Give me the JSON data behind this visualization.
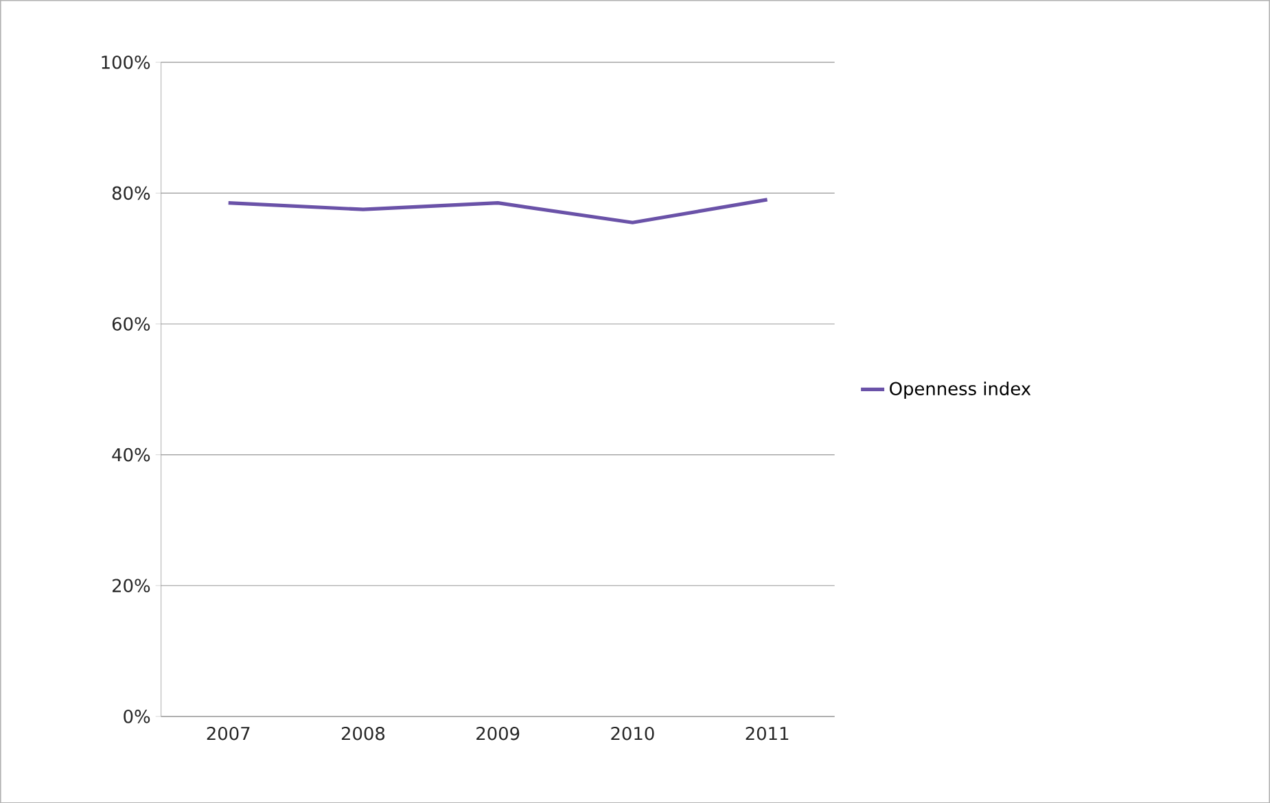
{
  "chart_data": {
    "type": "line",
    "categories": [
      "2007",
      "2008",
      "2009",
      "2010",
      "2011"
    ],
    "series": [
      {
        "name": "Openness index",
        "color": "#6a52a8",
        "values": [
          78.5,
          77.5,
          78.5,
          75.5,
          79
        ]
      }
    ],
    "ylim": [
      0,
      100
    ],
    "yticks": [
      {
        "value": 0,
        "label": "0%"
      },
      {
        "value": 20,
        "label": "20%"
      },
      {
        "value": 40,
        "label": "40%"
      },
      {
        "value": 60,
        "label": "60%"
      },
      {
        "value": 80,
        "label": "80%"
      },
      {
        "value": 100,
        "label": "100%"
      }
    ],
    "grid": "y",
    "legend": "right",
    "marker": "none",
    "line_style": "solid"
  }
}
